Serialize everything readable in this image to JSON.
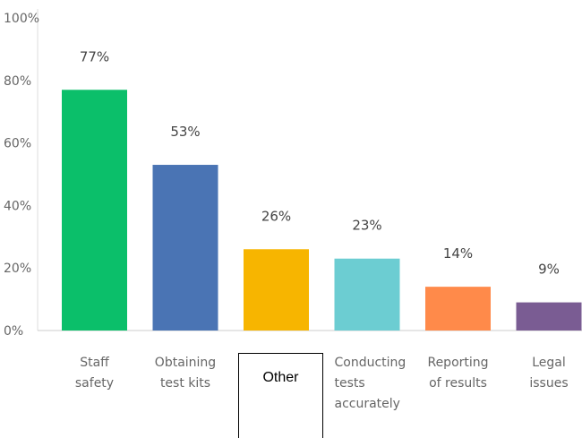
{
  "chart_data": {
    "type": "bar",
    "categories": [
      [
        "Staff",
        "safety"
      ],
      [
        "Obtaining",
        "test kits"
      ],
      [],
      [
        "Conducting",
        "tests",
        "accurately"
      ],
      [
        "Reporting",
        "of results"
      ],
      [
        "Legal",
        "issues"
      ]
    ],
    "values": [
      77,
      53,
      26,
      23,
      14,
      9
    ],
    "data_labels": [
      "77%",
      "53%",
      "26%",
      "23%",
      "14%",
      "9%"
    ],
    "colors": [
      "#0bbf6a",
      "#4a74b4",
      "#f7b500",
      "#6ccdd2",
      "#ff8a4a",
      "#7a5c93"
    ],
    "ylim": [
      0,
      100
    ],
    "yticks": [
      0,
      20,
      40,
      60,
      80,
      100
    ],
    "ytick_labels": [
      "0%",
      "20%",
      "40%",
      "60%",
      "80%",
      "100%"
    ],
    "grid": false
  },
  "overlay_box": {
    "label": "Other"
  }
}
